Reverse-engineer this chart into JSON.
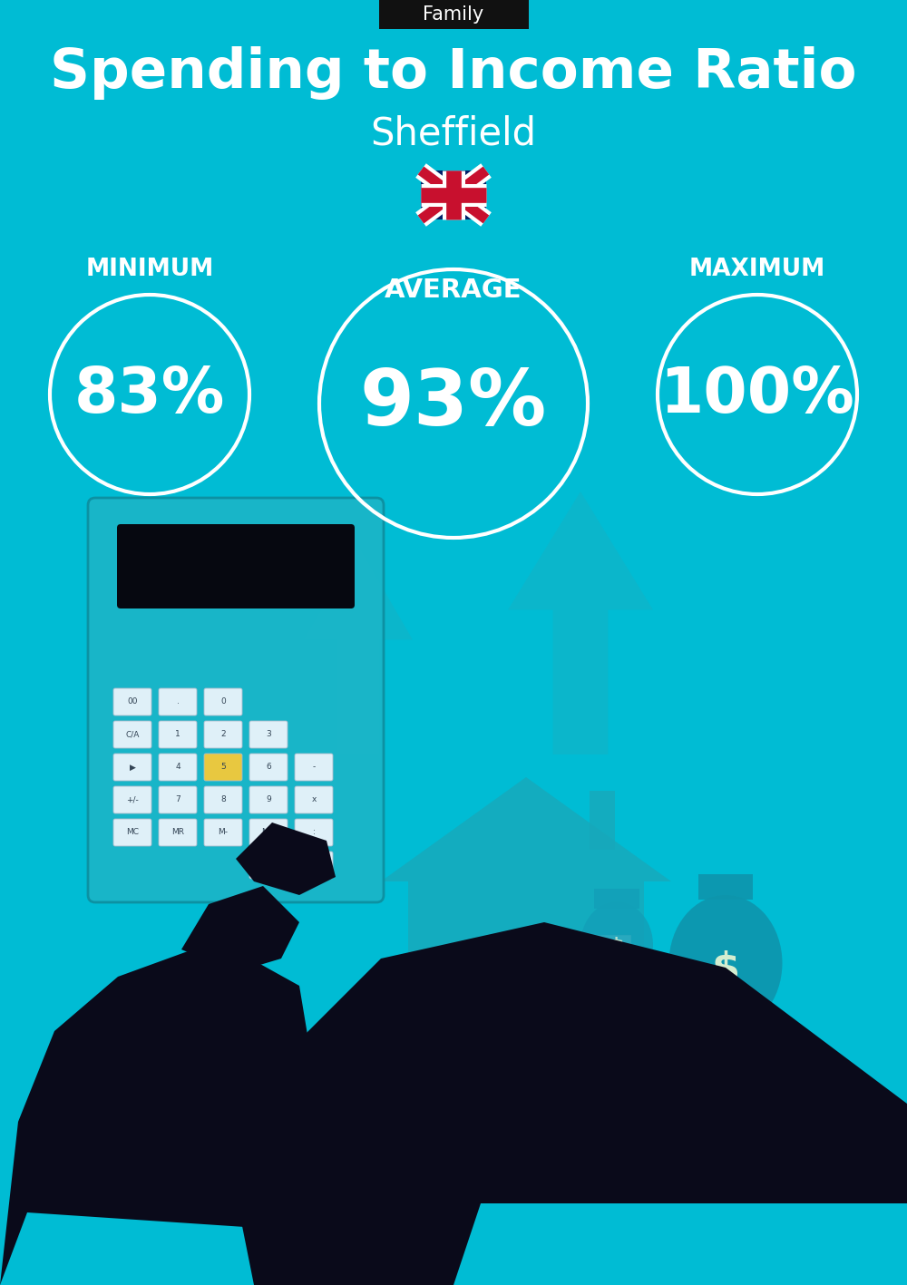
{
  "bg_color": "#00BCD4",
  "title": "Spending to Income Ratio",
  "subtitle": "Sheffield",
  "tag": "Family",
  "tag_bg": "#111111",
  "tag_color": "#ffffff",
  "average_label": "AVERAGE",
  "min_label": "MINIMUM",
  "max_label": "MAXIMUM",
  "min_value": "83%",
  "avg_value": "93%",
  "max_value": "100%",
  "circle_color": "#ffffff",
  "text_color": "#ffffff",
  "title_fontsize": 44,
  "subtitle_fontsize": 30,
  "tag_fontsize": 15,
  "label_fontsize": 19,
  "value_fontsize_small": 50,
  "value_fontsize_large": 62,
  "arrow_color": "#19B0C2",
  "house_color": "#18A8BA",
  "hand_color": "#0A0A1A",
  "cuff_color": "#00BCD4",
  "calc_body_color": "#1AB5C8",
  "calc_screen_color": "#060810",
  "btn_color": "#DFF0F8",
  "btn_text_color": "#334455"
}
